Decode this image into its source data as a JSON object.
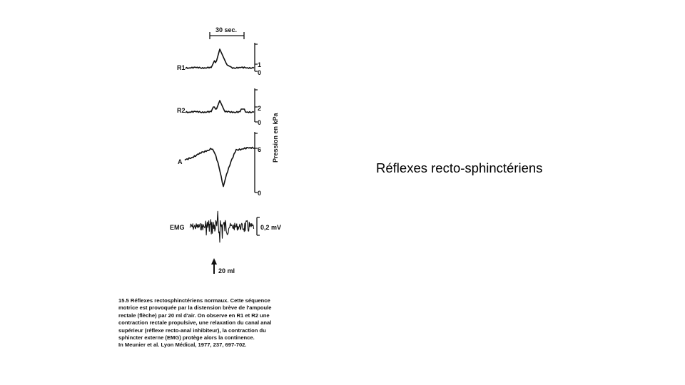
{
  "slide": {
    "title": "Réflexes recto-sphinctériens"
  },
  "figure": {
    "time_scale_label": "30 sec.",
    "pressure_axis_label": "Pression en kPa",
    "channels": [
      {
        "id": "R1",
        "label": "R1",
        "scale_top": "1",
        "scale_bottom": "0"
      },
      {
        "id": "R2",
        "label": "R2",
        "scale_top": "2",
        "scale_bottom": "0"
      },
      {
        "id": "A",
        "label": "A",
        "scale_top": "6",
        "scale_bottom": "0"
      },
      {
        "id": "EMG",
        "label": "EMG",
        "scale_label": "0,2 mV"
      }
    ],
    "stimulus_label": "20 ml",
    "caption_lines": [
      "15.5  Réflexes rectosphinctériens normaux. Cette séquence",
      "motrice est provoquée par la distension brève de l'ampoule",
      "rectale (flèche) par 20 ml d'air. On observe en R1 et R2 une",
      "contraction rectale propulsive, une relaxation du canal anal",
      "supérieur (réflexe recto-anal inhibiteur), la contraction du",
      "sphincter externe (EMG) protège alors la continence.",
      "In Meunier et al. Lyon Médical, 1977, 237, 697-702."
    ]
  }
}
